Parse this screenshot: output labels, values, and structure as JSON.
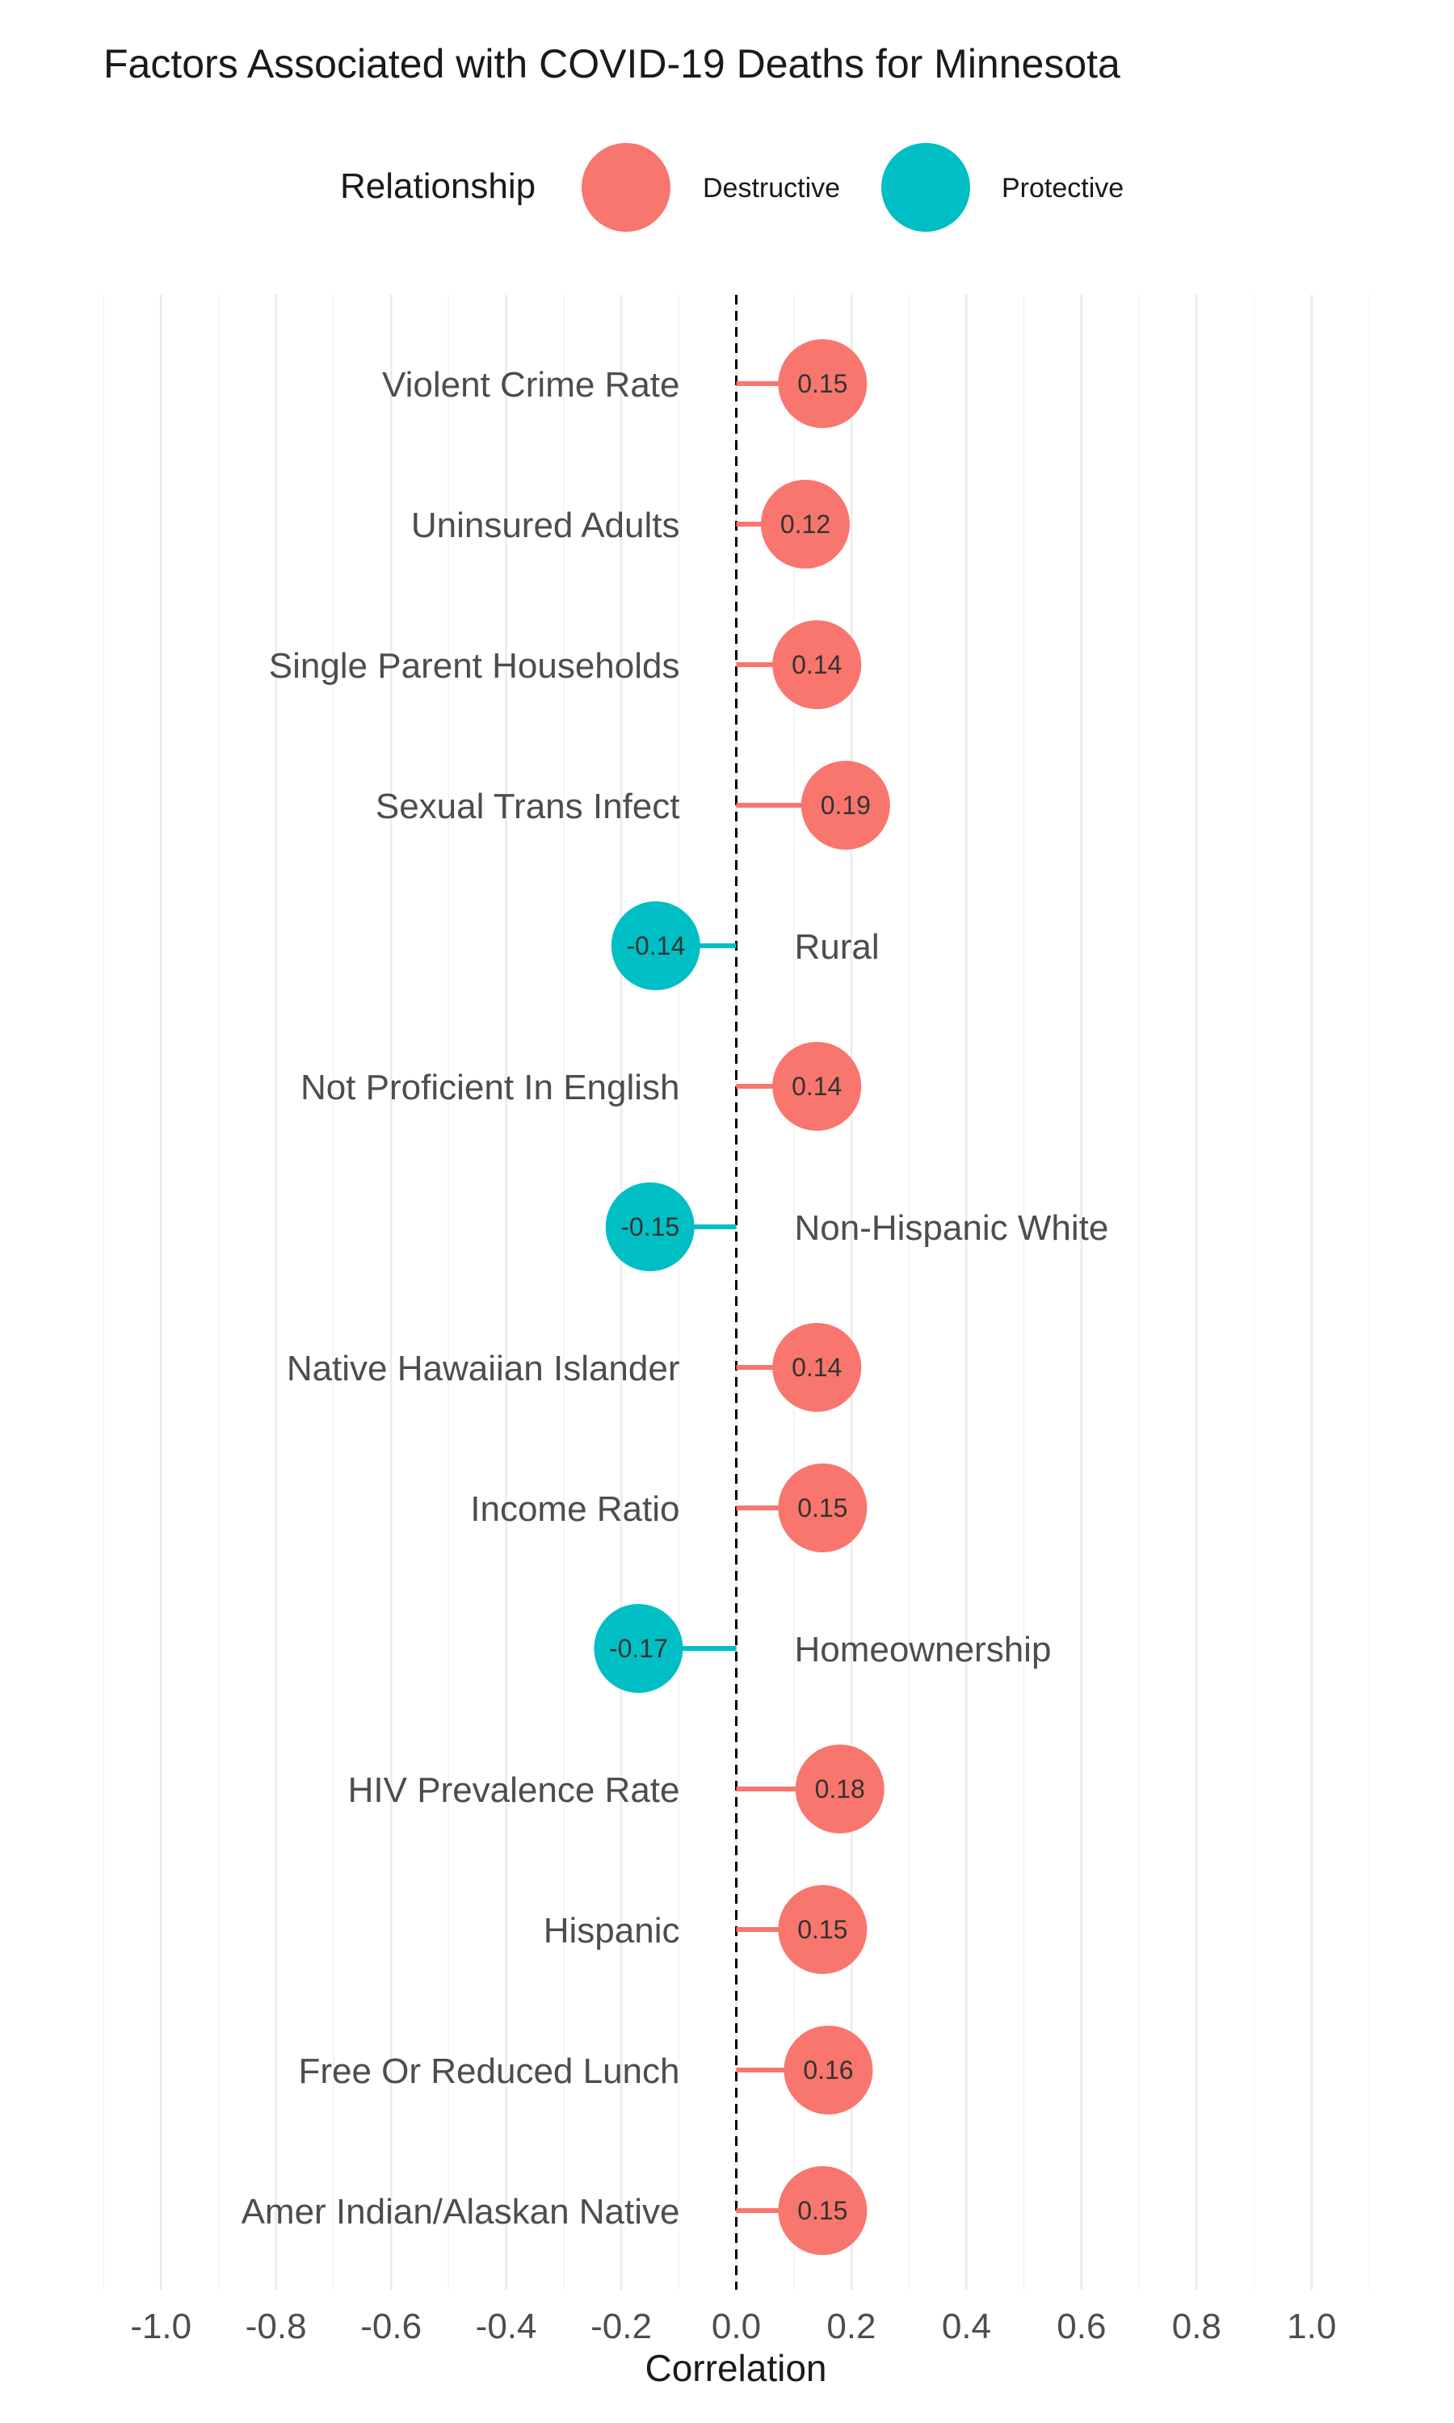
{
  "chart_data": {
    "type": "lollipop",
    "title": "Factors Associated with COVID-19 Deaths for Minnesota",
    "xlabel": "Correlation",
    "ylabel": "",
    "xlim": [
      -1.1,
      1.1
    ],
    "x_ticks": [
      -1.0,
      -0.8,
      -0.6,
      -0.4,
      -0.2,
      0.0,
      0.2,
      0.4,
      0.6,
      0.8,
      1.0
    ],
    "x_tick_labels": [
      "-1.0",
      "-0.8",
      "-0.6",
      "-0.4",
      "-0.2",
      "0.0",
      "0.2",
      "0.4",
      "0.6",
      "0.8",
      "1.0"
    ],
    "grid": true,
    "reference_line": 0,
    "legend": {
      "title": "Relationship",
      "position": "top",
      "entries": [
        {
          "label": "Destructive",
          "color": "#F8766D"
        },
        {
          "label": "Protective",
          "color": "#00BFC4"
        }
      ]
    },
    "points": [
      {
        "label": "Violent Crime Rate",
        "value": 0.15,
        "value_label": "0.15",
        "relationship": "Destructive"
      },
      {
        "label": "Uninsured Adults",
        "value": 0.12,
        "value_label": "0.12",
        "relationship": "Destructive"
      },
      {
        "label": "Single Parent Households",
        "value": 0.14,
        "value_label": "0.14",
        "relationship": "Destructive"
      },
      {
        "label": "Sexual Trans Infect",
        "value": 0.19,
        "value_label": "0.19",
        "relationship": "Destructive"
      },
      {
        "label": "Rural",
        "value": -0.14,
        "value_label": "-0.14",
        "relationship": "Protective"
      },
      {
        "label": "Not Proficient In English",
        "value": 0.14,
        "value_label": "0.14",
        "relationship": "Destructive"
      },
      {
        "label": "Non-Hispanic White",
        "value": -0.15,
        "value_label": "-0.15",
        "relationship": "Protective"
      },
      {
        "label": "Native Hawaiian Islander",
        "value": 0.14,
        "value_label": "0.14",
        "relationship": "Destructive"
      },
      {
        "label": "Income Ratio",
        "value": 0.15,
        "value_label": "0.15",
        "relationship": "Destructive"
      },
      {
        "label": "Homeownership",
        "value": -0.17,
        "value_label": "-0.17",
        "relationship": "Protective"
      },
      {
        "label": "HIV Prevalence Rate",
        "value": 0.18,
        "value_label": "0.18",
        "relationship": "Destructive"
      },
      {
        "label": "Hispanic",
        "value": 0.15,
        "value_label": "0.15",
        "relationship": "Destructive"
      },
      {
        "label": "Free Or Reduced Lunch",
        "value": 0.16,
        "value_label": "0.16",
        "relationship": "Destructive"
      },
      {
        "label": "Amer Indian/Alaskan Native",
        "value": 0.15,
        "value_label": "0.15",
        "relationship": "Destructive"
      }
    ]
  }
}
